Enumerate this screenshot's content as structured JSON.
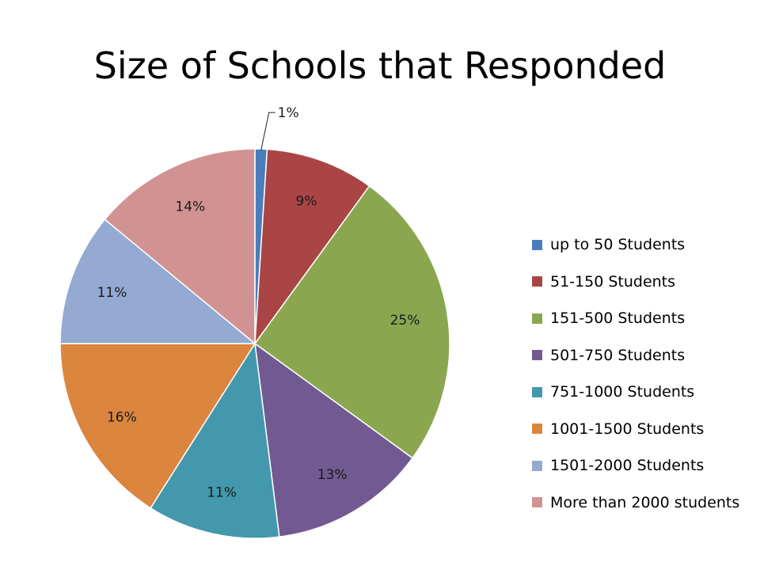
{
  "chart_data": {
    "type": "pie",
    "title": "Size of Schools that Responded",
    "categories": [
      "up to 50 Students",
      "51-150 Students",
      "151-500 Students",
      "501-750 Students",
      "751-1000 Students",
      "1001-1500 Students",
      "1501-2000 Students",
      "More than 2000 students"
    ],
    "values": [
      1,
      9,
      25,
      13,
      11,
      16,
      11,
      14
    ],
    "labels": [
      "1%",
      "9%",
      "25%",
      "13%",
      "11%",
      "16%",
      "11%",
      "14%"
    ],
    "colors": [
      "#4a7ebb",
      "#a94545",
      "#8aa750",
      "#715a91",
      "#4398ad",
      "#db853f",
      "#94aad3",
      "#d19391"
    ],
    "legend_position": "right"
  }
}
